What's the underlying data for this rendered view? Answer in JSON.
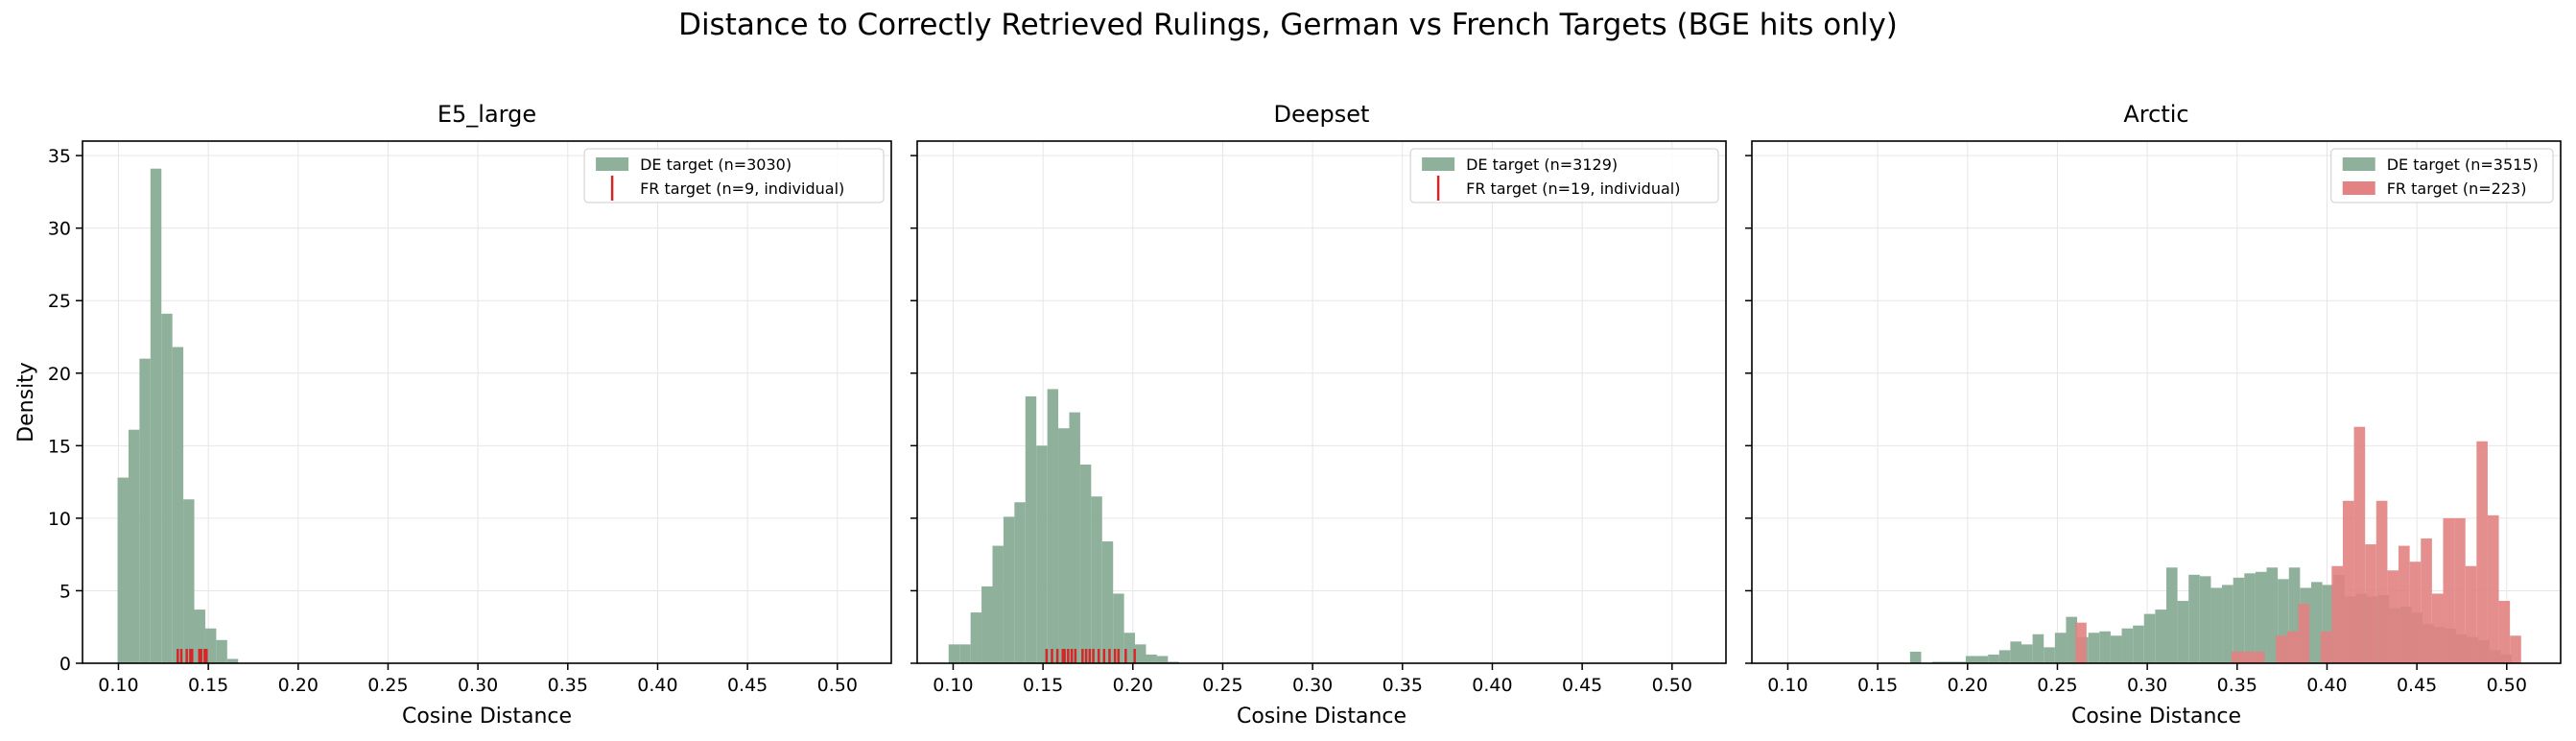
{
  "suptitle": "Distance to Correctly Retrieved Rulings, German vs French Targets (BGE hits only)",
  "colors": {
    "de": "#8fb09b",
    "fr": "#e28282",
    "fr_tick": "#d62728",
    "overlap": "#a76a5c",
    "grid": "#e6e6e6"
  },
  "chart_data": [
    {
      "type": "bar",
      "title": "E5_large",
      "xlabel": "Cosine Distance",
      "ylabel": "Density",
      "xlim": [
        0.08,
        0.53
      ],
      "ylim": [
        0,
        36
      ],
      "xticks": [
        "0.10",
        "0.15",
        "0.20",
        "0.25",
        "0.30",
        "0.35",
        "0.40",
        "0.45",
        "0.50"
      ],
      "yticks": [
        "0",
        "5",
        "10",
        "15",
        "20",
        "25",
        "30",
        "35"
      ],
      "grid": true,
      "legend_position": "top-right",
      "series": [
        {
          "name": "DE target (n=3030)",
          "kind": "histogram",
          "bin_width": 0.0061,
          "bins": [
            [
              0.0995,
              12.8
            ],
            [
              0.1056,
              16.1
            ],
            [
              0.1117,
              21.0
            ],
            [
              0.1178,
              34.1
            ],
            [
              0.1239,
              24.1
            ],
            [
              0.13,
              21.8
            ],
            [
              0.1361,
              11.3
            ],
            [
              0.1422,
              3.7
            ],
            [
              0.1483,
              2.4
            ],
            [
              0.1544,
              1.6
            ],
            [
              0.1605,
              0.3
            ]
          ]
        },
        {
          "name": "FR target (n=9, individual)",
          "kind": "rug",
          "x": [
            0.133,
            0.135,
            0.138,
            0.14,
            0.141,
            0.145,
            0.146,
            0.148,
            0.149
          ]
        }
      ]
    },
    {
      "type": "bar",
      "title": "Deepset",
      "xlabel": "Cosine Distance",
      "ylabel": "",
      "xlim": [
        0.08,
        0.53
      ],
      "ylim": [
        0,
        36
      ],
      "xticks": [
        "0.10",
        "0.15",
        "0.20",
        "0.25",
        "0.30",
        "0.35",
        "0.40",
        "0.45",
        "0.50"
      ],
      "yticks": [
        "0",
        "5",
        "10",
        "15",
        "20",
        "25",
        "30",
        "35"
      ],
      "grid": true,
      "legend_position": "top-right",
      "series": [
        {
          "name": "DE target (n=3129)",
          "kind": "histogram",
          "bin_width": 0.0061,
          "bins": [
            [
              0.0975,
              1.3
            ],
            [
              0.1036,
              1.3
            ],
            [
              0.1097,
              3.5
            ],
            [
              0.1158,
              5.3
            ],
            [
              0.1219,
              8.1
            ],
            [
              0.128,
              10.1
            ],
            [
              0.1341,
              11.1
            ],
            [
              0.1402,
              18.4
            ],
            [
              0.1463,
              15.0
            ],
            [
              0.1524,
              18.9
            ],
            [
              0.1585,
              16.2
            ],
            [
              0.1646,
              17.3
            ],
            [
              0.1707,
              13.7
            ],
            [
              0.1768,
              11.5
            ],
            [
              0.1829,
              8.4
            ],
            [
              0.189,
              4.8
            ],
            [
              0.1951,
              2.1
            ],
            [
              0.2012,
              1.3
            ],
            [
              0.2073,
              0.6
            ],
            [
              0.2134,
              0.5
            ],
            [
              0.2195,
              0.1
            ]
          ]
        },
        {
          "name": "FR target (n=19, individual)",
          "kind": "rug",
          "x": [
            0.152,
            0.155,
            0.158,
            0.161,
            0.162,
            0.164,
            0.166,
            0.168,
            0.172,
            0.174,
            0.176,
            0.178,
            0.181,
            0.184,
            0.187,
            0.19,
            0.192,
            0.196,
            0.201
          ]
        }
      ]
    },
    {
      "type": "bar",
      "title": "Arctic",
      "xlabel": "Cosine Distance",
      "ylabel": "",
      "xlim": [
        0.08,
        0.53
      ],
      "ylim": [
        0,
        36
      ],
      "xticks": [
        "0.10",
        "0.15",
        "0.20",
        "0.25",
        "0.30",
        "0.35",
        "0.40",
        "0.45",
        "0.50"
      ],
      "yticks": [
        "0",
        "5",
        "10",
        "15",
        "20",
        "25",
        "30",
        "35"
      ],
      "grid": true,
      "legend_position": "top-right",
      "series": [
        {
          "name": "DE target (n=3515)",
          "kind": "histogram",
          "bin_width": 0.0062,
          "bins": [
            [
              0.168,
              0.8
            ],
            [
              0.1742,
              0.0
            ],
            [
              0.1804,
              0.1
            ],
            [
              0.1866,
              0.1
            ],
            [
              0.1928,
              0.1
            ],
            [
              0.199,
              0.5
            ],
            [
              0.2052,
              0.5
            ],
            [
              0.2114,
              0.6
            ],
            [
              0.2176,
              0.9
            ],
            [
              0.2238,
              1.5
            ],
            [
              0.23,
              1.3
            ],
            [
              0.2362,
              2.0
            ],
            [
              0.2424,
              1.1
            ],
            [
              0.2486,
              2.1
            ],
            [
              0.2548,
              3.2
            ],
            [
              0.261,
              1.8
            ],
            [
              0.2672,
              2.1
            ],
            [
              0.2734,
              2.2
            ],
            [
              0.2796,
              1.9
            ],
            [
              0.2858,
              2.4
            ],
            [
              0.292,
              2.6
            ],
            [
              0.2982,
              3.4
            ],
            [
              0.3044,
              3.7
            ],
            [
              0.3106,
              6.6
            ],
            [
              0.3168,
              4.3
            ],
            [
              0.323,
              6.1
            ],
            [
              0.3292,
              6.0
            ],
            [
              0.3354,
              5.2
            ],
            [
              0.3416,
              5.4
            ],
            [
              0.3478,
              5.9
            ],
            [
              0.354,
              6.2
            ],
            [
              0.3602,
              6.3
            ],
            [
              0.3664,
              6.6
            ],
            [
              0.3726,
              5.8
            ],
            [
              0.3788,
              6.6
            ],
            [
              0.385,
              5.2
            ],
            [
              0.3912,
              5.6
            ],
            [
              0.3974,
              5.4
            ],
            [
              0.4036,
              6.1
            ],
            [
              0.4098,
              4.6
            ],
            [
              0.416,
              4.8
            ],
            [
              0.4222,
              4.6
            ],
            [
              0.4284,
              4.7
            ],
            [
              0.4346,
              3.8
            ],
            [
              0.4408,
              3.9
            ],
            [
              0.447,
              3.5
            ],
            [
              0.4532,
              2.7
            ],
            [
              0.4594,
              2.5
            ],
            [
              0.4656,
              2.4
            ],
            [
              0.4718,
              2.0
            ],
            [
              0.478,
              1.8
            ],
            [
              0.4842,
              1.6
            ],
            [
              0.4904,
              0.9
            ],
            [
              0.4966,
              0.6
            ]
          ]
        },
        {
          "name": "FR target (n=223)",
          "kind": "histogram",
          "bin_width": 0.0062,
          "bins": [
            [
              0.26,
              2.8
            ],
            [
              0.2662,
              0.0
            ],
            [
              0.2724,
              0.0
            ],
            [
              0.2786,
              0.0
            ],
            [
              0.2848,
              0.0
            ],
            [
              0.291,
              0.0
            ],
            [
              0.2972,
              0.0
            ],
            [
              0.3034,
              0.0
            ],
            [
              0.3096,
              0.0
            ],
            [
              0.3158,
              0.0
            ],
            [
              0.322,
              0.0
            ],
            [
              0.3282,
              0.0
            ],
            [
              0.3344,
              0.0
            ],
            [
              0.3406,
              0.0
            ],
            [
              0.3468,
              0.8
            ],
            [
              0.353,
              0.8
            ],
            [
              0.3592,
              0.8
            ],
            [
              0.3654,
              0.0
            ],
            [
              0.3716,
              1.9
            ],
            [
              0.3778,
              2.2
            ],
            [
              0.384,
              4.1
            ],
            [
              0.3902,
              0.0
            ],
            [
              0.3964,
              2.2
            ],
            [
              0.4026,
              6.7
            ],
            [
              0.4088,
              11.2
            ],
            [
              0.415,
              16.3
            ],
            [
              0.4212,
              8.2
            ],
            [
              0.4274,
              11.2
            ],
            [
              0.4336,
              6.4
            ],
            [
              0.4398,
              8.1
            ],
            [
              0.446,
              7.0
            ],
            [
              0.4522,
              8.6
            ],
            [
              0.4584,
              4.8
            ],
            [
              0.4646,
              10.0
            ],
            [
              0.4708,
              10.0
            ],
            [
              0.477,
              6.7
            ],
            [
              0.4832,
              15.3
            ],
            [
              0.4894,
              10.2
            ],
            [
              0.4956,
              4.3
            ],
            [
              0.5018,
              1.9
            ]
          ]
        }
      ]
    }
  ]
}
